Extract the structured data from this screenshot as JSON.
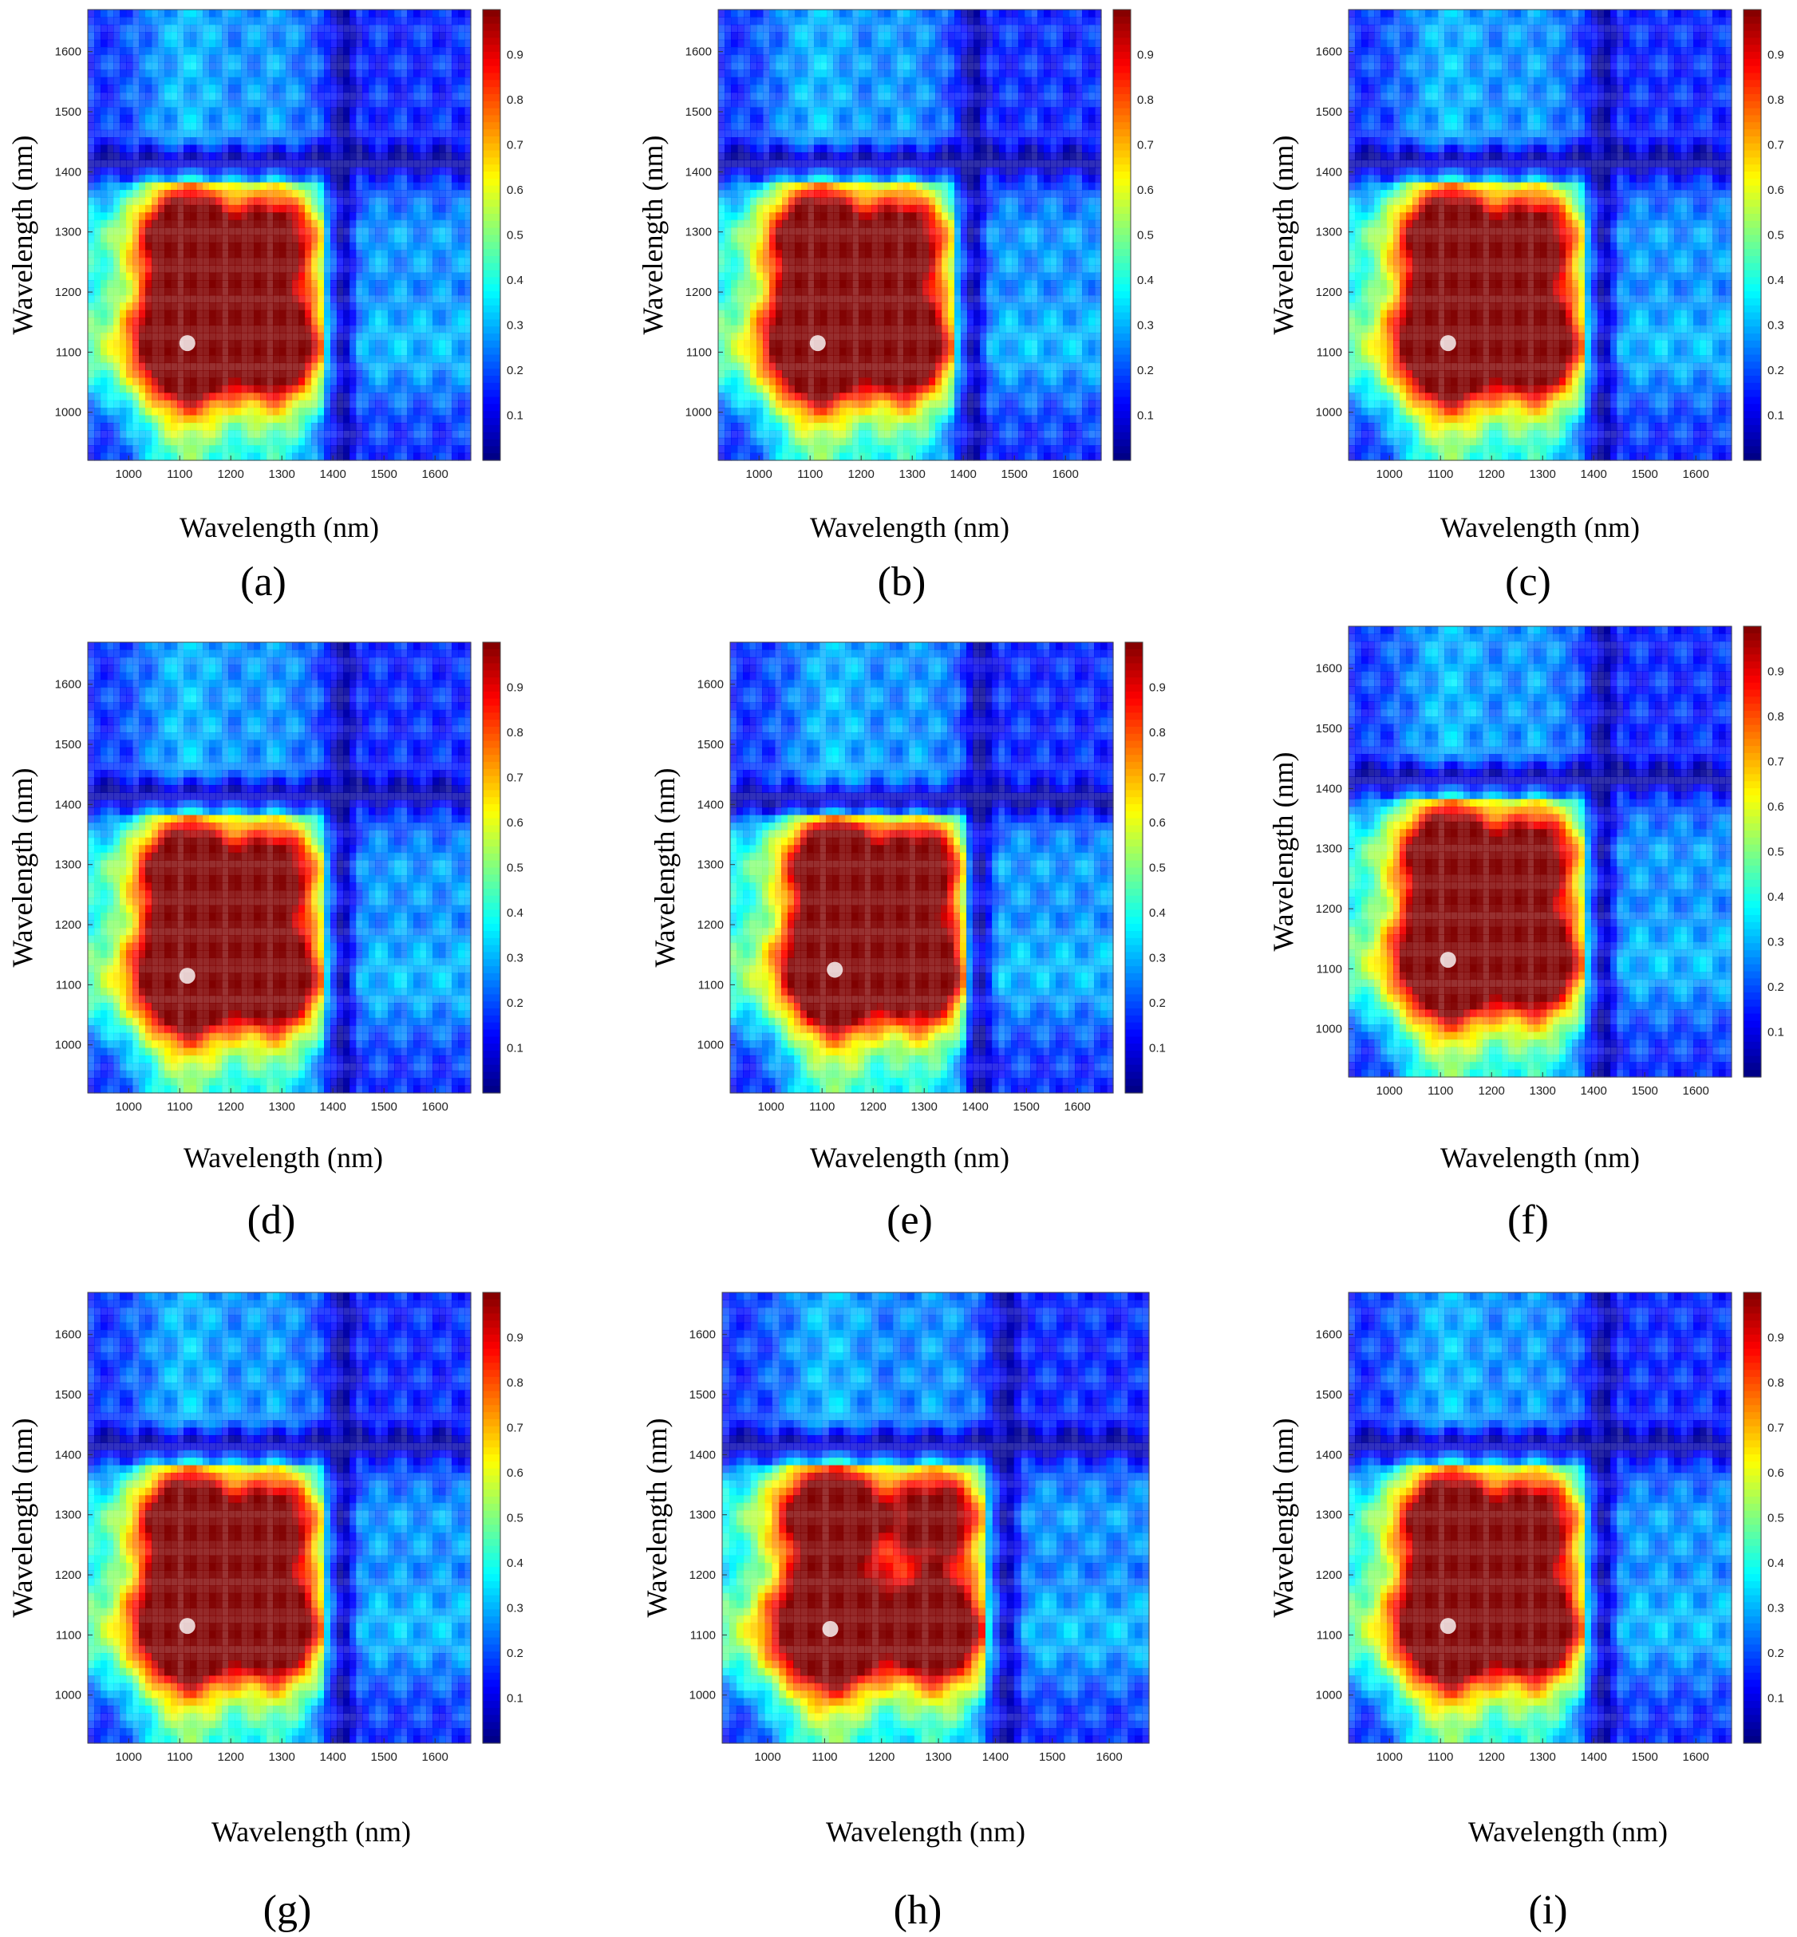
{
  "figure": {
    "description_hidden": false,
    "colormap": [
      "#00007f",
      "#0000ff",
      "#0080ff",
      "#00ffff",
      "#80ff80",
      "#ffff00",
      "#ff8000",
      "#ff0000",
      "#7f0000"
    ]
  },
  "chart_data": [
    {
      "type": "heatmap",
      "panel_label": "(a)",
      "xlabel": "Wavelength (nm)",
      "ylabel": "Wavelength (nm)",
      "xlim": [
        920,
        1670
      ],
      "ylim": [
        920,
        1670
      ],
      "x_ticks": [
        "1000",
        "1100",
        "1200",
        "1300",
        "1400",
        "1500",
        "1600"
      ],
      "y_ticks": [
        "1000",
        "1100",
        "1200",
        "1300",
        "1400",
        "1500",
        "1600"
      ],
      "colorbar_ticks": [
        "0.1",
        "0.2",
        "0.3",
        "0.4",
        "0.5",
        "0.6",
        "0.7",
        "0.8",
        "0.9"
      ],
      "colorbar": true,
      "peak": {
        "x": 1115,
        "y": 1115,
        "value": 1.0
      },
      "secondary_band": 1290,
      "dark_band": 1420
    },
    {
      "type": "heatmap",
      "panel_label": "(b)",
      "xlabel": "Wavelength (nm)",
      "ylabel": "Wavelength (nm)",
      "xlim": [
        920,
        1670
      ],
      "ylim": [
        920,
        1670
      ],
      "x_ticks": [
        "1000",
        "1100",
        "1200",
        "1300",
        "1400",
        "1500",
        "1600"
      ],
      "y_ticks": [
        "1000",
        "1100",
        "1200",
        "1300",
        "1400",
        "1500",
        "1600"
      ],
      "colorbar_ticks": [
        "0.1",
        "0.2",
        "0.3",
        "0.4",
        "0.5",
        "0.6",
        "0.7",
        "0.8",
        "0.9"
      ],
      "colorbar": true,
      "peak": {
        "x": 1115,
        "y": 1115,
        "value": 1.0
      },
      "secondary_band": 1290,
      "dark_band": 1420
    },
    {
      "type": "heatmap",
      "panel_label": "(c)",
      "xlabel": "Wavelength (nm)",
      "ylabel": "Wavelength (nm)",
      "xlim": [
        920,
        1670
      ],
      "ylim": [
        920,
        1670
      ],
      "x_ticks": [
        "1000",
        "1100",
        "1200",
        "1300",
        "1400",
        "1500",
        "1600"
      ],
      "y_ticks": [
        "1000",
        "1100",
        "1200",
        "1300",
        "1400",
        "1500",
        "1600"
      ],
      "colorbar_ticks": [
        "0.1",
        "0.2",
        "0.3",
        "0.4",
        "0.5",
        "0.6",
        "0.7",
        "0.8",
        "0.9"
      ],
      "colorbar": true,
      "peak": {
        "x": 1115,
        "y": 1115,
        "value": 1.0
      },
      "secondary_band": 1290,
      "dark_band": 1420
    },
    {
      "type": "heatmap",
      "panel_label": "(d)",
      "xlabel": "Wavelength (nm)",
      "ylabel": "Wavelength (nm)",
      "xlim": [
        920,
        1670
      ],
      "ylim": [
        920,
        1670
      ],
      "x_ticks": [
        "1000",
        "1100",
        "1200",
        "1300",
        "1400",
        "1500",
        "1600"
      ],
      "y_ticks": [
        "1000",
        "1100",
        "1200",
        "1300",
        "1400",
        "1500",
        "1600"
      ],
      "colorbar_ticks": [
        "0.1",
        "0.2",
        "0.3",
        "0.4",
        "0.5",
        "0.6",
        "0.7",
        "0.8",
        "0.9"
      ],
      "colorbar": true,
      "peak": {
        "x": 1115,
        "y": 1115,
        "value": 1.0
      },
      "secondary_band": 1290,
      "dark_band": 1420
    },
    {
      "type": "heatmap",
      "panel_label": "(e)",
      "xlabel": "Wavelength (nm)",
      "ylabel": "Wavelength (nm)",
      "xlim": [
        920,
        1670
      ],
      "ylim": [
        920,
        1670
      ],
      "x_ticks": [
        "1000",
        "1100",
        "1200",
        "1300",
        "1400",
        "1500",
        "1600"
      ],
      "y_ticks": [
        "1000",
        "1100",
        "1200",
        "1300",
        "1400",
        "1500",
        "1600"
      ],
      "colorbar_ticks": [
        "0.1",
        "0.2",
        "0.3",
        "0.4",
        "0.5",
        "0.6",
        "0.7",
        "0.8",
        "0.9"
      ],
      "colorbar": true,
      "peak": {
        "x": 1125,
        "y": 1125,
        "value": 1.0
      },
      "secondary_band": 1300,
      "dark_band": 1410
    },
    {
      "type": "heatmap",
      "panel_label": "(f)",
      "xlabel": "Wavelength (nm)",
      "ylabel": "Wavelength (nm)",
      "xlim": [
        920,
        1670
      ],
      "ylim": [
        920,
        1670
      ],
      "x_ticks": [
        "1000",
        "1100",
        "1200",
        "1300",
        "1400",
        "1500",
        "1600"
      ],
      "y_ticks": [
        "1000",
        "1100",
        "1200",
        "1300",
        "1400",
        "1500",
        "1600"
      ],
      "colorbar_ticks": [
        "0.1",
        "0.2",
        "0.3",
        "0.4",
        "0.5",
        "0.6",
        "0.7",
        "0.8",
        "0.9"
      ],
      "colorbar": true,
      "peak": {
        "x": 1115,
        "y": 1115,
        "value": 1.0
      },
      "secondary_band": 1290,
      "dark_band": 1420
    },
    {
      "type": "heatmap",
      "panel_label": "(g)",
      "xlabel": "Wavelength (nm)",
      "ylabel": "Wavelength (nm)",
      "xlim": [
        920,
        1670
      ],
      "ylim": [
        920,
        1670
      ],
      "x_ticks": [
        "1000",
        "1100",
        "1200",
        "1300",
        "1400",
        "1500",
        "1600"
      ],
      "y_ticks": [
        "1000",
        "1100",
        "1200",
        "1300",
        "1400",
        "1500",
        "1600"
      ],
      "colorbar_ticks": [
        "0.1",
        "0.2",
        "0.3",
        "0.4",
        "0.5",
        "0.6",
        "0.7",
        "0.8",
        "0.9"
      ],
      "colorbar": true,
      "peak": {
        "x": 1115,
        "y": 1115,
        "value": 1.0
      },
      "secondary_band": 1290,
      "dark_band": 1420
    },
    {
      "type": "heatmap",
      "panel_label": "(h)",
      "xlabel": "Wavelength (nm)",
      "ylabel": "Wavelength (nm)",
      "xlim": [
        920,
        1670
      ],
      "ylim": [
        920,
        1670
      ],
      "x_ticks": [
        "1000",
        "1100",
        "1200",
        "1300",
        "1400",
        "1500",
        "1600"
      ],
      "y_ticks": [
        "1000",
        "1100",
        "1200",
        "1300",
        "1400",
        "1500",
        "1600"
      ],
      "colorbar_ticks": [],
      "colorbar": false,
      "peak": {
        "x": 1110,
        "y": 1110,
        "value": 1.0
      },
      "secondary_band": 1300,
      "dark_band": 1420
    },
    {
      "type": "heatmap",
      "panel_label": "(i)",
      "xlabel": "Wavelength (nm)",
      "ylabel": "Wavelength (nm)",
      "xlim": [
        920,
        1670
      ],
      "ylim": [
        920,
        1670
      ],
      "x_ticks": [
        "1000",
        "1100",
        "1200",
        "1300",
        "1400",
        "1500",
        "1600"
      ],
      "y_ticks": [
        "1000",
        "1100",
        "1200",
        "1300",
        "1400",
        "1500",
        "1600"
      ],
      "colorbar_ticks": [
        "0.1",
        "0.2",
        "0.3",
        "0.4",
        "0.5",
        "0.6",
        "0.7",
        "0.8",
        "0.9"
      ],
      "colorbar": true,
      "peak": {
        "x": 1115,
        "y": 1115,
        "value": 1.0
      },
      "secondary_band": 1290,
      "dark_band": 1420
    }
  ]
}
